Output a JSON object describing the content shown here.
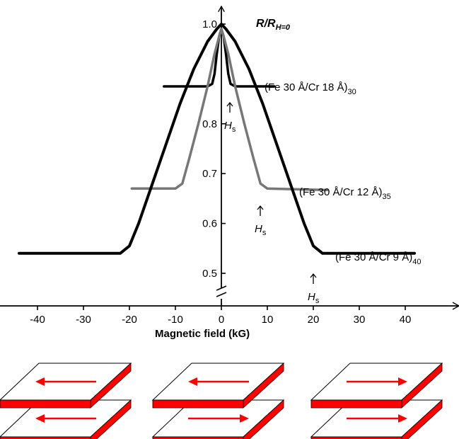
{
  "chart_data": {
    "type": "line",
    "title": "",
    "ylabel": "R/R",
    "ylabel_sub": "H=0",
    "xlabel": "Magnetic field (kG)",
    "xlim": [
      -45,
      50
    ],
    "ylim": [
      0.47,
      1.04
    ],
    "y_axis_break": true,
    "grid": false,
    "x_ticks": [
      -40,
      -30,
      -20,
      -10,
      0,
      10,
      20,
      30,
      40
    ],
    "y_ticks": [
      0.5,
      0.6,
      0.7,
      0.8,
      1.0
    ],
    "series": [
      {
        "name": "(Fe 30 Å/Cr 18 Å)",
        "name_sub": "30",
        "color": "#000000",
        "saturation_field": 1.5,
        "x": [
          -12.5,
          -3,
          -2,
          -1.5,
          -1,
          -0.5,
          0,
          0.5,
          1,
          1.5,
          2,
          3,
          11.5
        ],
        "y": [
          0.875,
          0.875,
          0.88,
          0.9,
          0.94,
          0.975,
          0.99,
          0.975,
          0.94,
          0.9,
          0.88,
          0.875,
          0.875
        ]
      },
      {
        "name": "(Fe 30 Å/Cr 12 Å)",
        "name_sub": "35",
        "color": "#777777",
        "saturation_field": 8,
        "x": [
          -19.5,
          -10,
          -8.5,
          -7,
          -5,
          -3,
          -1.5,
          -0.5,
          0,
          0.5,
          1.5,
          3,
          5,
          7,
          8.5,
          10,
          23
        ],
        "y": [
          0.67,
          0.67,
          0.68,
          0.73,
          0.8,
          0.875,
          0.94,
          0.975,
          0.99,
          0.975,
          0.94,
          0.875,
          0.8,
          0.73,
          0.68,
          0.67,
          0.667
        ]
      },
      {
        "name": "(Fe 30 Å/Cr 9 Å)",
        "name_sub": "40",
        "color": "#000000",
        "saturation_field": 20,
        "x": [
          -44,
          -22,
          -20,
          -18,
          -15,
          -12,
          -9,
          -6,
          -3,
          -1,
          0,
          1,
          3,
          6,
          9,
          12,
          15,
          18,
          20,
          22,
          42
        ],
        "y": [
          0.54,
          0.54,
          0.555,
          0.6,
          0.68,
          0.76,
          0.84,
          0.91,
          0.965,
          0.99,
          1.0,
          0.99,
          0.965,
          0.91,
          0.84,
          0.76,
          0.68,
          0.6,
          0.555,
          0.54,
          0.54
        ]
      }
    ],
    "annotations": [
      {
        "label": "H",
        "label_sub": "s",
        "x": 1.5,
        "y": 0.84
      },
      {
        "label": "H",
        "label_sub": "s",
        "x": 8.5,
        "y": 0.63
      },
      {
        "label": "H",
        "label_sub": "s",
        "x": 20,
        "y": 0.47
      }
    ]
  },
  "diagram": {
    "arrow_color": "#ff0000",
    "edge_color": "#ff0000",
    "face_color": "#ffffff",
    "stacks": [
      {
        "top_arrow": "left",
        "bottom_arrow": "left"
      },
      {
        "top_arrow": "left",
        "bottom_arrow": "right"
      },
      {
        "top_arrow": "right",
        "bottom_arrow": "right"
      }
    ]
  }
}
